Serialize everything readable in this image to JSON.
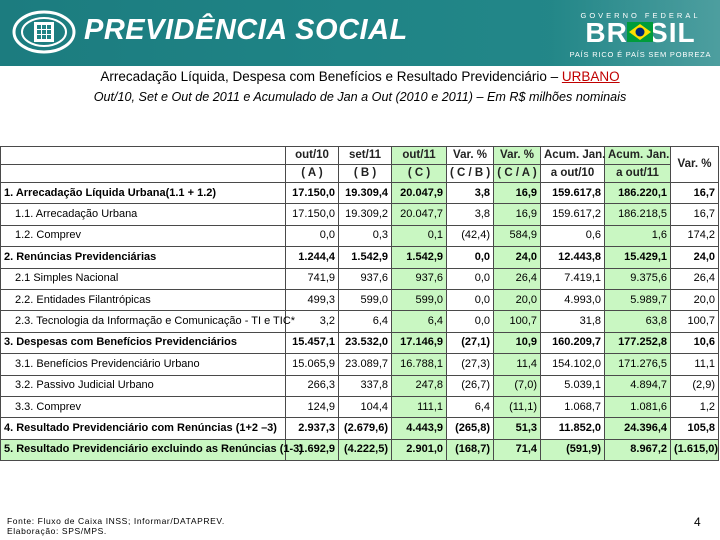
{
  "header": {
    "brand": "PREVIDÊNCIA SOCIAL",
    "gov_top": "GOVERNO FEDERAL",
    "gov_name": "BRASIL",
    "gov_slogan": "PAÍS RICO É PAÍS SEM POBREZA",
    "colors": {
      "banner": "#1f8486",
      "highlight_green": "#c9f7c2",
      "accent_red": "#c00000"
    }
  },
  "title": {
    "main": "Arrecadação Líquida, Despesa com Benefícios e Resultado Previdenciário – ",
    "main_highlight": "URBANO",
    "subtitle": "Out/10, Set e Out de 2011 e Acumulado de Jan a Out (2010 e 2011) – Em R$ milhões nominais"
  },
  "table": {
    "columns": [
      {
        "line1": "",
        "line2": ""
      },
      {
        "line1": "out/10",
        "line2": "( A )"
      },
      {
        "line1": "set/11",
        "line2": "( B )"
      },
      {
        "line1": "out/11",
        "line2": "( C )"
      },
      {
        "line1": "Var. %",
        "line2": "( C / B )"
      },
      {
        "line1": "Var. %",
        "line2": "( C / A )"
      },
      {
        "line1": "Acum. Jan.",
        "line2": "a out/10"
      },
      {
        "line1": "Acum. Jan.",
        "line2": "a out/11"
      },
      {
        "line1": "Var. %",
        "line2": ""
      }
    ],
    "rows": [
      {
        "label": "1. Arrecadação Líquida Urbana(1.1 + 1.2)",
        "bold": true,
        "indent": 1,
        "values": [
          "17.150,0",
          "19.309,4",
          "20.047,9",
          "3,8",
          "16,9",
          "159.617,8",
          "186.220,1",
          "16,7"
        ]
      },
      {
        "label": "1.1. Arrecadação Urbana",
        "bold": false,
        "indent": 2,
        "values": [
          "17.150,0",
          "19.309,2",
          "20.047,7",
          "3,8",
          "16,9",
          "159.617,2",
          "186.218,5",
          "16,7"
        ]
      },
      {
        "label": "1.2. Comprev",
        "bold": false,
        "indent": 2,
        "values": [
          "0,0",
          "0,3",
          "0,1",
          "(42,4)",
          "584,9",
          "0,6",
          "1,6",
          "174,2"
        ]
      },
      {
        "label": "2. Renúncias Previdenciárias",
        "bold": true,
        "indent": 1,
        "values": [
          "1.244,4",
          "1.542,9",
          "1.542,9",
          "0,0",
          "24,0",
          "12.443,8",
          "15.429,1",
          "24,0"
        ]
      },
      {
        "label": "2.1 Simples Nacional",
        "bold": false,
        "indent": 2,
        "values": [
          "741,9",
          "937,6",
          "937,6",
          "0,0",
          "26,4",
          "7.419,1",
          "9.375,6",
          "26,4"
        ]
      },
      {
        "label": "2.2. Entidades Filantrópicas",
        "bold": false,
        "indent": 2,
        "values": [
          "499,3",
          "599,0",
          "599,0",
          "0,0",
          "20,0",
          "4.993,0",
          "5.989,7",
          "20,0"
        ]
      },
      {
        "label": "2.3. Tecnologia da Informação e Comunicação - TI e TIC*",
        "bold": false,
        "indent": 2,
        "values": [
          "3,2",
          "6,4",
          "6,4",
          "0,0",
          "100,7",
          "31,8",
          "63,8",
          "100,7"
        ]
      },
      {
        "label": "3. Despesas com Benefícios Previdenciários",
        "bold": true,
        "indent": 1,
        "values": [
          "15.457,1",
          "23.532,0",
          "17.146,9",
          "(27,1)",
          "10,9",
          "160.209,7",
          "177.252,8",
          "10,6"
        ]
      },
      {
        "label": "3.1. Benefícios Previdenciário Urbano",
        "bold": false,
        "indent": 2,
        "values": [
          "15.065,9",
          "23.089,7",
          "16.788,1",
          "(27,3)",
          "11,4",
          "154.102,0",
          "171.276,5",
          "11,1"
        ]
      },
      {
        "label": "3.2. Passivo Judicial Urbano",
        "bold": false,
        "indent": 2,
        "values": [
          "266,3",
          "337,8",
          "247,8",
          "(26,7)",
          "(7,0)",
          "5.039,1",
          "4.894,7",
          "(2,9)"
        ]
      },
      {
        "label": "3.3. Comprev",
        "bold": false,
        "indent": 2,
        "values": [
          "124,9",
          "104,4",
          "111,1",
          "6,4",
          "(11,1)",
          "1.068,7",
          "1.081,6",
          "1,2"
        ]
      },
      {
        "label": "4. Resultado Previdenciário com Renúncias (1+2 –3)",
        "bold": true,
        "indent": 1,
        "values": [
          "2.937,3",
          "(2.679,6)",
          "4.443,9",
          "(265,8)",
          "51,3",
          "11.852,0",
          "24.396,4",
          "105,8"
        ]
      },
      {
        "label": "5. Resultado Previdenciário excluindo as Renúncias (1-3)",
        "bold": true,
        "indent": 1,
        "values": [
          "1.692,9",
          "(4.222,5)",
          "2.901,0",
          "(168,7)",
          "71,4",
          "(591,9)",
          "8.967,2",
          "(1.615,0)"
        ]
      }
    ]
  },
  "footer": {
    "source": "Fonte: Fluxo de Caixa INSS; Informar/DATAPREV.",
    "prepared": "Elaboração: SPS/MPS.",
    "page_number": "4"
  }
}
